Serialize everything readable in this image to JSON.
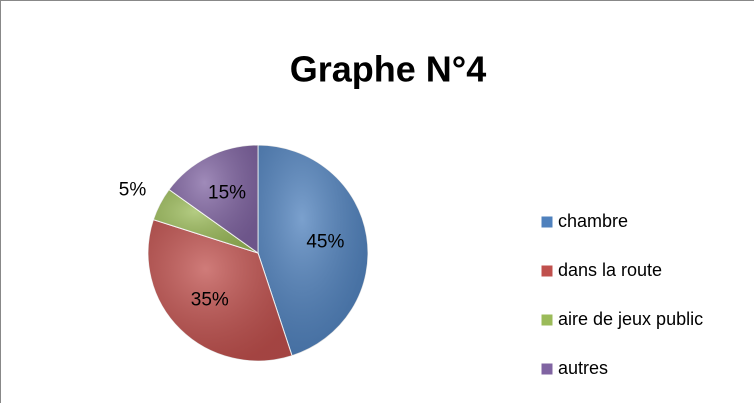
{
  "chart_data": {
    "type": "pie",
    "title": "Graphe N°4",
    "categories": [
      "chambre",
      "dans la route",
      "aire de jeux public",
      "autres"
    ],
    "values": [
      45,
      35,
      5,
      15
    ],
    "value_labels": [
      "45%",
      "35%",
      "5%",
      "15%"
    ],
    "colors": [
      "#4f81bd",
      "#c0504d",
      "#9bbb59",
      "#8064a2"
    ],
    "legend": "right"
  }
}
